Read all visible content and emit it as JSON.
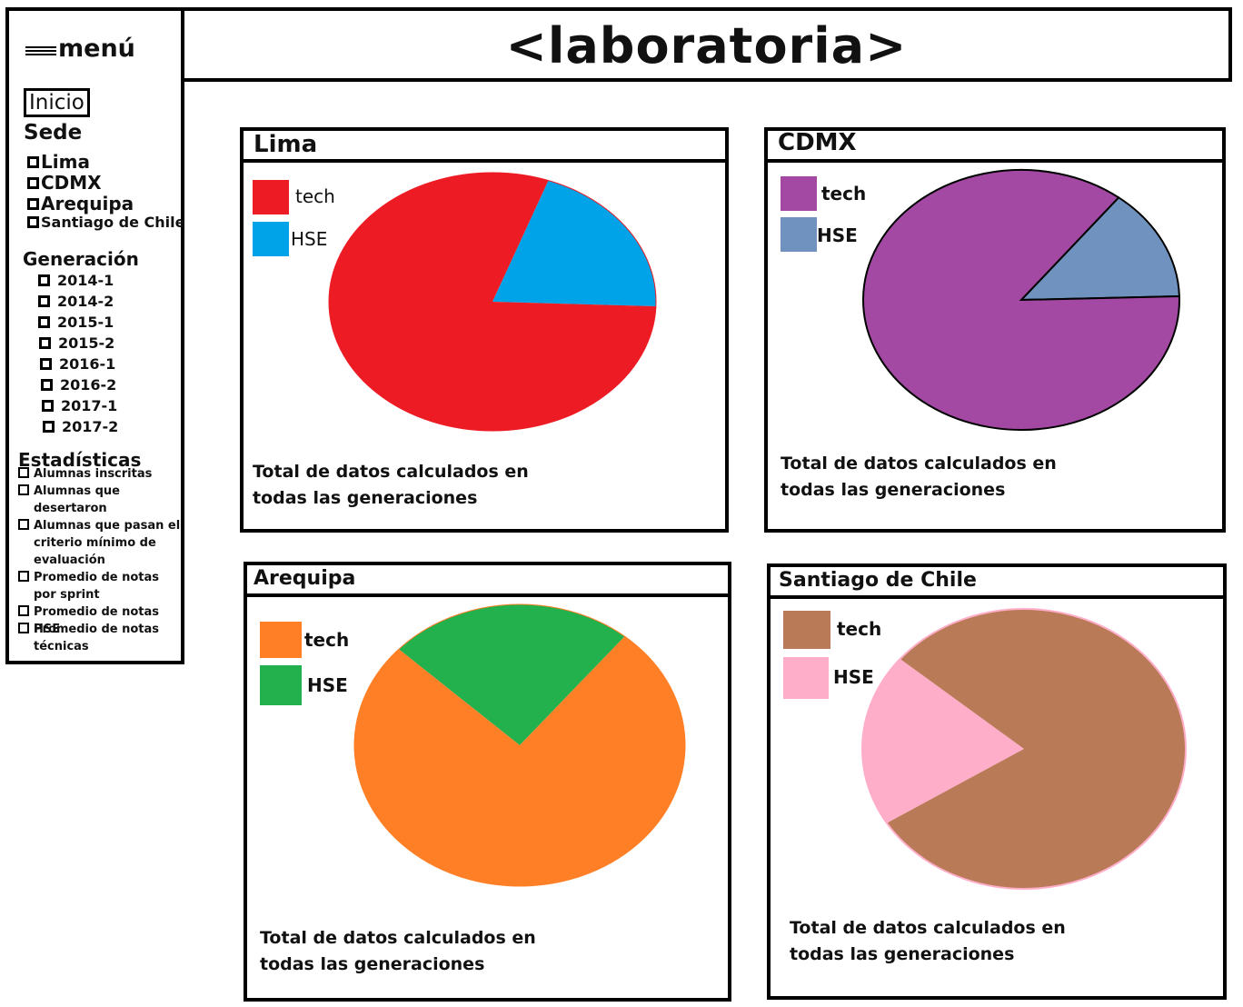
{
  "menu": {
    "label": "menú",
    "icon": "hamburger-icon"
  },
  "header": {
    "title": "<laboratoria>"
  },
  "sidebar": {
    "home_label": "Inicio",
    "sede_heading": "Sede",
    "sedes": [
      "Lima",
      "CDMX",
      "Arequipa",
      "Santiago de Chile"
    ],
    "generacion_heading": "Generación",
    "generaciones": [
      "2014-1",
      "2014-2",
      "2015-1",
      "2015-2",
      "2016-1",
      "2016-2",
      "2017-1",
      "2017-2"
    ],
    "estadisticas_heading": "Estadísticas",
    "estadisticas": [
      "Alumnas inscritas",
      "Alumnas que desertaron",
      "Alumnas que pasan el criterio mínimo de evaluación",
      "Promedio de notas por sprint",
      "Promedio de notas HSE",
      "Promedio de notas técnicas"
    ]
  },
  "cards": [
    {
      "title": "Lima",
      "legend": [
        {
          "label": "tech",
          "color": "#ed1c24"
        },
        {
          "label": "HSE",
          "color": "#00a2e8"
        }
      ],
      "footer": "Total de datos calculados en todas las generaciones"
    },
    {
      "title": "CDMX",
      "legend": [
        {
          "label": "tech",
          "color": "#a349a4"
        },
        {
          "label": "HSE",
          "color": "#7092be"
        }
      ],
      "footer": "Total de datos calculados en todas las generaciones"
    },
    {
      "title": "Arequipa",
      "legend": [
        {
          "label": "tech",
          "color": "#ff7f27"
        },
        {
          "label": "HSE",
          "color": "#22b14c"
        }
      ],
      "footer": "Total de datos calculados en todas las generaciones"
    },
    {
      "title": "Santiago de Chile",
      "legend": [
        {
          "label": "tech",
          "color": "#b97a57"
        },
        {
          "label": "HSE",
          "color": "#ffaec9"
        }
      ],
      "footer": "Total de datos calculados en todas las generaciones"
    }
  ],
  "chart_data": [
    {
      "type": "pie",
      "title": "Lima",
      "categories": [
        "tech",
        "HSE"
      ],
      "values": [
        80,
        20
      ],
      "colors": [
        "#ed1c24",
        "#00a2e8"
      ],
      "legend": "top-left"
    },
    {
      "type": "pie",
      "title": "CDMX",
      "categories": [
        "tech",
        "HSE"
      ],
      "values": [
        86,
        14
      ],
      "colors": [
        "#a349a4",
        "#7092be"
      ],
      "legend": "top-left"
    },
    {
      "type": "pie",
      "title": "Arequipa",
      "categories": [
        "tech",
        "HSE"
      ],
      "values": [
        76,
        24
      ],
      "colors": [
        "#ff7f27",
        "#22b14c"
      ],
      "legend": "top-left"
    },
    {
      "type": "pie",
      "title": "Santiago de Chile",
      "categories": [
        "tech",
        "HSE"
      ],
      "values": [
        80,
        20
      ],
      "colors": [
        "#b97a57",
        "#ffaec9"
      ],
      "legend": "top-left"
    }
  ]
}
